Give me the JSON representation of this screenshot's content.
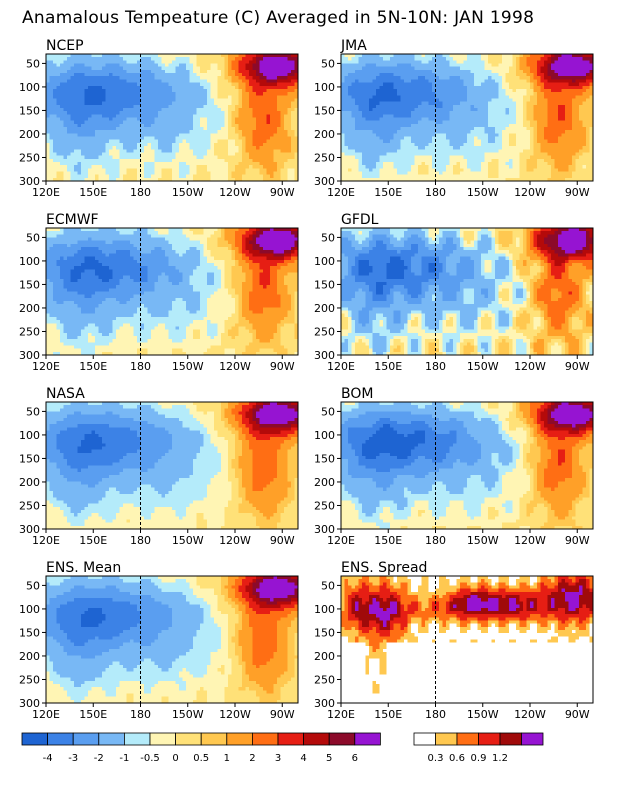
{
  "figure": {
    "title": "Anamalous Tempeature (C) Averaged in 5N-10N: JAN 1998"
  },
  "colors": {
    "anomaly_palette": [
      "#1e64d2",
      "#3c82e6",
      "#5a9ef0",
      "#78b8f5",
      "#b4ebfa",
      "#fff5b4",
      "#ffe178",
      "#ffc850",
      "#ffa028",
      "#ff6e14",
      "#e61e14",
      "#b40a0a",
      "#8c0a2a",
      "#9614d2"
    ],
    "anomaly_boundaries": [
      -5,
      -4,
      -3,
      -2,
      -1,
      -0.5,
      0,
      0.5,
      1,
      2,
      3,
      4,
      5,
      6,
      8
    ],
    "spread_palette": [
      "#ffffff",
      "#ffc850",
      "#ff6e14",
      "#e61e14",
      "#a00a0a",
      "#9614d2"
    ],
    "spread_boundaries": [
      0,
      0.3,
      0.6,
      0.9,
      1.2,
      1.5,
      2
    ]
  },
  "chart_data": [
    {
      "type": "heatmap",
      "title": "NCEP",
      "x_ticks": [
        "120E",
        "150E",
        "180",
        "150W",
        "120W",
        "90W"
      ],
      "x_range_lon": [
        120,
        280
      ],
      "y_ticks": [
        "50",
        "100",
        "150",
        "200",
        "250",
        "300"
      ],
      "y_range": [
        30,
        300
      ],
      "dateline_lon": 180,
      "var": "anomaly",
      "variant": 0
    },
    {
      "type": "heatmap",
      "title": "JMA",
      "x_ticks": [
        "120E",
        "150E",
        "180",
        "150W",
        "120W",
        "90W"
      ],
      "x_range_lon": [
        120,
        280
      ],
      "y_ticks": [
        "50",
        "100",
        "150",
        "200",
        "250",
        "300"
      ],
      "y_range": [
        30,
        300
      ],
      "dateline_lon": 180,
      "var": "anomaly",
      "variant": 1
    },
    {
      "type": "heatmap",
      "title": "ECMWF",
      "x_ticks": [
        "120E",
        "150E",
        "180",
        "150W",
        "120W",
        "90W"
      ],
      "x_range_lon": [
        120,
        280
      ],
      "y_ticks": [
        "50",
        "100",
        "150",
        "200",
        "250",
        "300"
      ],
      "y_range": [
        30,
        300
      ],
      "dateline_lon": 180,
      "var": "anomaly",
      "variant": 2
    },
    {
      "type": "heatmap",
      "title": "GFDL",
      "x_ticks": [
        "120E",
        "150E",
        "180",
        "150W",
        "120W",
        "90W"
      ],
      "x_range_lon": [
        120,
        280
      ],
      "y_ticks": [
        "50",
        "100",
        "150",
        "200",
        "250",
        "300"
      ],
      "y_range": [
        30,
        300
      ],
      "dateline_lon": 180,
      "var": "anomaly",
      "variant": 3
    },
    {
      "type": "heatmap",
      "title": "NASA",
      "x_ticks": [
        "120E",
        "150E",
        "180",
        "150W",
        "120W",
        "90W"
      ],
      "x_range_lon": [
        120,
        280
      ],
      "y_ticks": [
        "50",
        "100",
        "150",
        "200",
        "250",
        "300"
      ],
      "y_range": [
        30,
        300
      ],
      "dateline_lon": 180,
      "var": "anomaly",
      "variant": 4
    },
    {
      "type": "heatmap",
      "title": "BOM",
      "x_ticks": [
        "120E",
        "150E",
        "180",
        "150W",
        "120W",
        "90W"
      ],
      "x_range_lon": [
        120,
        280
      ],
      "y_ticks": [
        "50",
        "100",
        "150",
        "200",
        "250",
        "300"
      ],
      "y_range": [
        30,
        300
      ],
      "dateline_lon": 180,
      "var": "anomaly",
      "variant": 5
    },
    {
      "type": "heatmap",
      "title": "ENS. Mean",
      "x_ticks": [
        "120E",
        "150E",
        "180",
        "150W",
        "120W",
        "90W"
      ],
      "x_range_lon": [
        120,
        280
      ],
      "y_ticks": [
        "50",
        "100",
        "150",
        "200",
        "250",
        "300"
      ],
      "y_range": [
        30,
        300
      ],
      "dateline_lon": 180,
      "var": "anomaly",
      "variant": 6
    },
    {
      "type": "heatmap",
      "title": "ENS. Spread",
      "x_ticks": [
        "120E",
        "150E",
        "180",
        "150W",
        "120W",
        "90W"
      ],
      "x_range_lon": [
        120,
        280
      ],
      "y_ticks": [
        "50",
        "100",
        "150",
        "200",
        "250",
        "300"
      ],
      "y_range": [
        30,
        300
      ],
      "dateline_lon": 180,
      "var": "spread",
      "variant": 7
    }
  ],
  "colorbars": {
    "anomaly_labels": [
      "-4",
      "-3",
      "-2",
      "-1",
      "-0.5",
      "0",
      "0.5",
      "1",
      "2",
      "3",
      "4",
      "5",
      "6"
    ],
    "spread_labels": [
      "0.3",
      "0.6",
      "0.9",
      "1.2"
    ]
  }
}
